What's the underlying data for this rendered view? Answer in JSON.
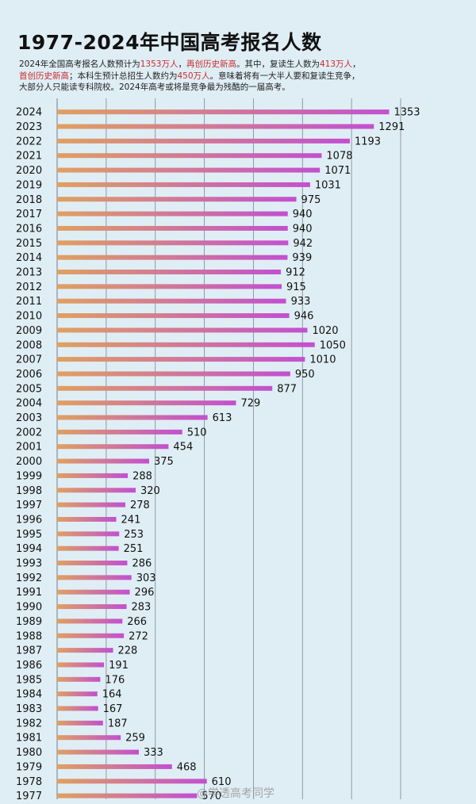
{
  "title": "1977-2024年中国高考报名人数",
  "description": {
    "line1_a": "2024年全国高考报名人数预计为",
    "line1_b": "1353万人",
    "line1_c": "，",
    "line1_d": "再创历史新高",
    "line1_e": "。其中，复读生人数为",
    "line1_f": "413万人",
    "line1_g": "，",
    "line2_a": "首创历史新高",
    "line2_b": "；本科生预计总招生人数约为",
    "line2_c": "450万人",
    "line2_d": "。意味着将有一大半人要和复读生竞争，",
    "line3": "大部分人只能读专科院校。2024年高考或将是竞争最为残酷的一届高考。"
  },
  "watermark": "@学透高考同学",
  "colors": {
    "background": "#dfeef5",
    "bar_start": "#e0a060",
    "bar_end": "#c34fd0",
    "highlight": "#cc2a2a",
    "gridline": "#8a8f96"
  },
  "chart_data": {
    "type": "bar",
    "orientation": "horizontal",
    "title": "1977-2024年中国高考报名人数",
    "xlim": [
      0,
      1400
    ],
    "grid": true,
    "categories": [
      "2024",
      "2023",
      "2022",
      "2021",
      "2020",
      "2019",
      "2018",
      "2017",
      "2016",
      "2015",
      "2014",
      "2013",
      "2012",
      "2011",
      "2010",
      "2009",
      "2008",
      "2007",
      "2006",
      "2005",
      "2004",
      "2003",
      "2002",
      "2001",
      "2000",
      "1999",
      "1998",
      "1997",
      "1996",
      "1995",
      "1994",
      "1993",
      "1992",
      "1991",
      "1990",
      "1989",
      "1988",
      "1987",
      "1986",
      "1985",
      "1984",
      "1983",
      "1982",
      "1981",
      "1980",
      "1979",
      "1978",
      "1977"
    ],
    "values": [
      1353,
      1291,
      1193,
      1078,
      1071,
      1031,
      975,
      940,
      940,
      942,
      939,
      912,
      915,
      933,
      946,
      1020,
      1050,
      1010,
      950,
      877,
      729,
      613,
      510,
      454,
      375,
      288,
      320,
      278,
      241,
      253,
      251,
      286,
      303,
      296,
      283,
      266,
      272,
      228,
      191,
      176,
      164,
      167,
      187,
      259,
      333,
      468,
      610,
      570
    ],
    "value_labels": [
      "1353",
      "1291",
      "1193",
      "1078",
      "1071",
      "1031",
      "975",
      "940",
      "940",
      "942",
      "939",
      "912",
      "915",
      "933",
      "946",
      "1020",
      "1050",
      "1010",
      "950",
      "877",
      "729",
      "613",
      "510",
      "454",
      "375",
      "288",
      "320",
      "278",
      "241",
      "253",
      "251",
      "286",
      "303",
      "296",
      "283",
      "266",
      "272",
      "228",
      "191",
      "176",
      "164",
      "167",
      "187",
      "259",
      "333",
      "468",
      "610",
      "570"
    ]
  }
}
